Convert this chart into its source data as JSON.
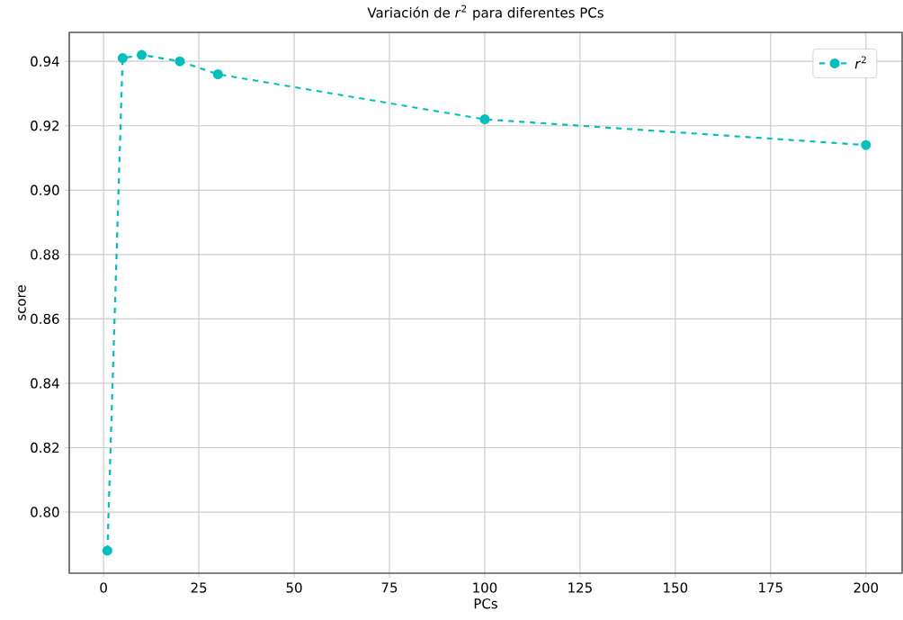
{
  "chart_data": {
    "type": "line",
    "title": "Variación de *r*$^{2}$ para diferentes PCs",
    "xlabel": "PCs",
    "ylabel": "score",
    "x": [
      1,
      5,
      10,
      20,
      30,
      100,
      200
    ],
    "series": [
      {
        "name": "*r*$^{2}$",
        "color": "#00bfbf",
        "values": [
          0.788,
          0.941,
          0.942,
          0.94,
          0.936,
          0.922,
          0.914
        ]
      }
    ],
    "xlim": [
      -9,
      209.5
    ],
    "ylim": [
      0.781,
      0.949
    ],
    "xticks": [
      0,
      25,
      50,
      75,
      100,
      125,
      150,
      175,
      200
    ],
    "yticks": [
      {
        "value": 0.8,
        "label": "0.80"
      },
      {
        "value": 0.82,
        "label": "0.82"
      },
      {
        "value": 0.84,
        "label": "0.84"
      },
      {
        "value": 0.86,
        "label": "0.86"
      },
      {
        "value": 0.88,
        "label": "0.88"
      },
      {
        "value": 0.9,
        "label": "0.90"
      },
      {
        "value": 0.92,
        "label": "0.92"
      },
      {
        "value": 0.94,
        "label": "0.94"
      }
    ],
    "grid": true,
    "legend": "top right",
    "marker": "circle",
    "line_style": "dashed"
  }
}
